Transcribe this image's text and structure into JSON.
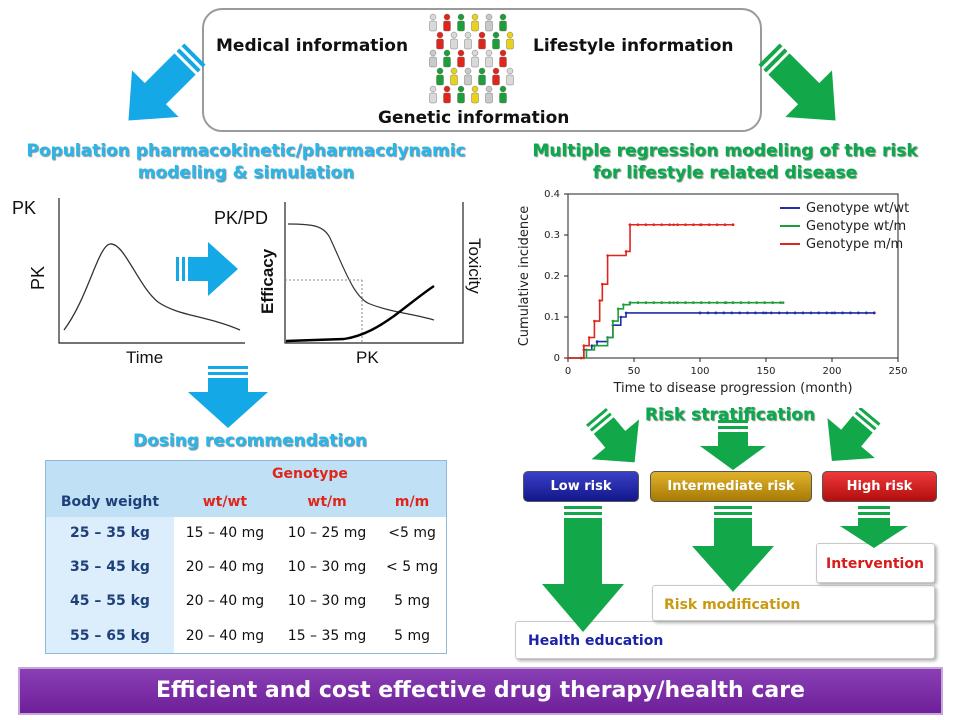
{
  "top_box": {
    "medical": "Medical information",
    "lifestyle": "Lifestyle information",
    "genetic": "Genetic information"
  },
  "left": {
    "heading_line1": "Population pharmacokinetic/pharmacdynamic",
    "heading_line2": "modeling & simulation",
    "pk_title": "PK",
    "pk_ylabel": "PK",
    "pk_xlabel": "Time",
    "pkpd_title": "PK/PD",
    "pkpd_ylabel_left": "Efficacy",
    "pkpd_ylabel_right": "Toxicity",
    "pkpd_xlabel": "PK",
    "dosing_heading": "Dosing recommendation"
  },
  "dose_table": {
    "genotype_label": "Genotype",
    "body_weight_label": "Body weight",
    "columns": [
      "wt/wt",
      "wt/m",
      "m/m"
    ],
    "rows": [
      {
        "weight": "25 – 35 kg",
        "values": [
          "15 – 40 mg",
          "10 – 25 mg",
          "<5 mg"
        ]
      },
      {
        "weight": "35 – 45 kg",
        "values": [
          "20 – 40 mg",
          "10 – 30 mg",
          "< 5 mg"
        ]
      },
      {
        "weight": "45 – 55 kg",
        "values": [
          "20 – 40 mg",
          "10 – 30 mg",
          "5 mg"
        ]
      },
      {
        "weight": "55 – 65 kg",
        "values": [
          "20 – 40 mg",
          "15 – 35 mg",
          "5 mg"
        ]
      }
    ]
  },
  "right": {
    "heading_line1": "Multiple regression modeling of the risk",
    "heading_line2": "for lifestyle related disease",
    "risk_heading": "Risk stratification"
  },
  "chart_data": {
    "type": "line",
    "title": "",
    "xlabel": "Time to disease progression (month)",
    "ylabel": "Cumulative incidence",
    "xlim": [
      0,
      250
    ],
    "ylim": [
      0,
      0.4
    ],
    "x_ticks": [
      "0",
      "50",
      "100",
      "150",
      "200",
      "250"
    ],
    "y_ticks": [
      "0",
      "0.1",
      "0.2",
      "0.3",
      "0.4"
    ],
    "legend_position": "top-right",
    "series": [
      {
        "name": "Genotype wt/wt",
        "color": "#1f2fa8",
        "points": [
          [
            0,
            0
          ],
          [
            10,
            0
          ],
          [
            12,
            0.02
          ],
          [
            18,
            0.03
          ],
          [
            22,
            0.04
          ],
          [
            30,
            0.05
          ],
          [
            34,
            0.08
          ],
          [
            40,
            0.1
          ],
          [
            44,
            0.11
          ],
          [
            100,
            0.11
          ],
          [
            150,
            0.11
          ],
          [
            200,
            0.11
          ],
          [
            232,
            0.11
          ]
        ]
      },
      {
        "name": "Genotype wt/m",
        "color": "#1e9e3a",
        "points": [
          [
            0,
            0
          ],
          [
            12,
            0
          ],
          [
            14,
            0.02
          ],
          [
            20,
            0.03
          ],
          [
            30,
            0.05
          ],
          [
            34,
            0.09
          ],
          [
            38,
            0.12
          ],
          [
            42,
            0.13
          ],
          [
            47,
            0.135
          ],
          [
            80,
            0.135
          ],
          [
            120,
            0.135
          ],
          [
            163,
            0.135
          ]
        ]
      },
      {
        "name": "Genotype m/m",
        "color": "#e0261b",
        "points": [
          [
            0,
            0
          ],
          [
            10,
            0
          ],
          [
            12,
            0.03
          ],
          [
            16,
            0.05
          ],
          [
            20,
            0.09
          ],
          [
            24,
            0.14
          ],
          [
            26,
            0.18
          ],
          [
            30,
            0.25
          ],
          [
            44,
            0.26
          ],
          [
            47,
            0.325
          ],
          [
            80,
            0.325
          ],
          [
            100,
            0.325
          ],
          [
            125,
            0.325
          ]
        ]
      }
    ]
  },
  "risk_levels": {
    "low": "Low risk",
    "intermediate": "Intermediate risk",
    "high": "High risk"
  },
  "outcomes": {
    "intervention": "Intervention",
    "modification": "Risk modification",
    "education": "Health education"
  },
  "footer": "Efficient and cost effective drug therapy/health care",
  "colors": {
    "blue_arrow": "#14a8e6",
    "green_arrow": "#12a84a",
    "low_risk": "#1d23a6",
    "intermediate_risk": "#c99a12",
    "high_risk": "#d91b1b"
  }
}
